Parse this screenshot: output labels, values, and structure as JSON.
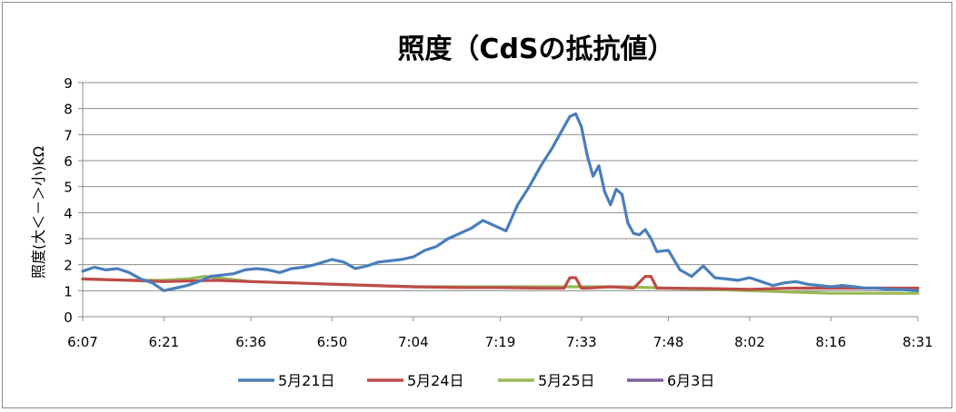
{
  "chart_data": {
    "type": "line",
    "title": "照度（CdSの抵抗値）",
    "ylabel": "照度(大＜－＞小)kΩ",
    "xlabel": "",
    "ylim": [
      0,
      9
    ],
    "yticks": [
      "0",
      "1",
      "2",
      "3",
      "4",
      "5",
      "6",
      "7",
      "8",
      "9"
    ],
    "xticks": [
      "6:07",
      "6:21",
      "6:36",
      "6:50",
      "7:04",
      "7:19",
      "7:33",
      "7:48",
      "8:02",
      "8:16",
      "8:31"
    ],
    "grid": true,
    "legend": "bottom",
    "series": [
      {
        "name": "5月21日",
        "color": "#4a7ebb",
        "x": [
          "6:07",
          "6:09",
          "6:11",
          "6:13",
          "6:15",
          "6:17",
          "6:19",
          "6:21",
          "6:23",
          "6:25",
          "6:27",
          "6:29",
          "6:31",
          "6:33",
          "6:35",
          "6:37",
          "6:39",
          "6:41",
          "6:43",
          "6:45",
          "6:47",
          "6:50",
          "6:52",
          "6:54",
          "6:56",
          "6:58",
          "7:00",
          "7:02",
          "7:04",
          "7:06",
          "7:08",
          "7:10",
          "7:12",
          "7:14",
          "7:16",
          "7:18",
          "7:20",
          "7:22",
          "7:24",
          "7:26",
          "7:28",
          "7:30",
          "7:31",
          "7:32",
          "7:33",
          "7:34",
          "7:35",
          "7:36",
          "7:37",
          "7:38",
          "7:39",
          "7:40",
          "7:41",
          "7:42",
          "7:43",
          "7:44",
          "7:45",
          "7:46",
          "7:48",
          "7:50",
          "7:52",
          "7:54",
          "7:56",
          "7:58",
          "8:00",
          "8:02",
          "8:04",
          "8:06",
          "8:08",
          "8:10",
          "8:12",
          "8:14",
          "8:16",
          "8:18",
          "8:20",
          "8:22",
          "8:24",
          "8:26",
          "8:28",
          "8:31"
        ],
        "y": [
          1.75,
          1.9,
          1.8,
          1.85,
          1.7,
          1.45,
          1.3,
          1.0,
          1.1,
          1.2,
          1.35,
          1.55,
          1.6,
          1.65,
          1.8,
          1.85,
          1.8,
          1.7,
          1.85,
          1.9,
          2.0,
          2.2,
          2.1,
          1.85,
          1.95,
          2.1,
          2.15,
          2.2,
          2.3,
          2.55,
          2.7,
          3.0,
          3.2,
          3.4,
          3.7,
          3.5,
          3.3,
          4.3,
          5.0,
          5.8,
          6.5,
          7.3,
          7.7,
          7.8,
          7.3,
          6.2,
          5.4,
          5.8,
          4.8,
          4.3,
          4.9,
          4.7,
          3.6,
          3.2,
          3.15,
          3.35,
          3.0,
          2.5,
          2.55,
          1.8,
          1.55,
          1.95,
          1.5,
          1.45,
          1.4,
          1.5,
          1.35,
          1.2,
          1.3,
          1.35,
          1.25,
          1.2,
          1.15,
          1.2,
          1.15,
          1.1,
          1.1,
          1.05,
          1.05,
          1.0
        ]
      },
      {
        "name": "5月24日",
        "color": "#be4b48",
        "x": [
          "6:07",
          "6:15",
          "6:21",
          "6:30",
          "6:36",
          "6:43",
          "6:50",
          "6:57",
          "7:04",
          "7:12",
          "7:19",
          "7:26",
          "7:30",
          "7:31",
          "7:32",
          "7:33",
          "7:34",
          "7:38",
          "7:42",
          "7:44",
          "7:45",
          "7:46",
          "7:48",
          "7:55",
          "8:02",
          "8:09",
          "8:16",
          "8:24",
          "8:31"
        ],
        "y": [
          1.45,
          1.4,
          1.35,
          1.4,
          1.35,
          1.3,
          1.25,
          1.2,
          1.15,
          1.12,
          1.12,
          1.1,
          1.1,
          1.5,
          1.5,
          1.1,
          1.1,
          1.15,
          1.1,
          1.55,
          1.55,
          1.1,
          1.1,
          1.08,
          1.05,
          1.1,
          1.1,
          1.1,
          1.1
        ]
      },
      {
        "name": "5月25日",
        "color": "#98b954",
        "x": [
          "6:07",
          "6:15",
          "6:21",
          "6:25",
          "6:28",
          "6:32",
          "6:36",
          "6:43",
          "6:50",
          "6:57",
          "7:04",
          "7:12",
          "7:19",
          "7:26",
          "7:33",
          "7:40",
          "7:48",
          "7:55",
          "8:02",
          "8:09",
          "8:16",
          "8:24",
          "8:31"
        ],
        "y": [
          1.45,
          1.4,
          1.4,
          1.45,
          1.55,
          1.45,
          1.35,
          1.3,
          1.25,
          1.2,
          1.15,
          1.15,
          1.15,
          1.15,
          1.15,
          1.15,
          1.1,
          1.05,
          1.0,
          0.95,
          0.9,
          0.9,
          0.9
        ]
      },
      {
        "name": "6月3日",
        "color": "#7d60a0",
        "x": [],
        "y": []
      }
    ]
  }
}
